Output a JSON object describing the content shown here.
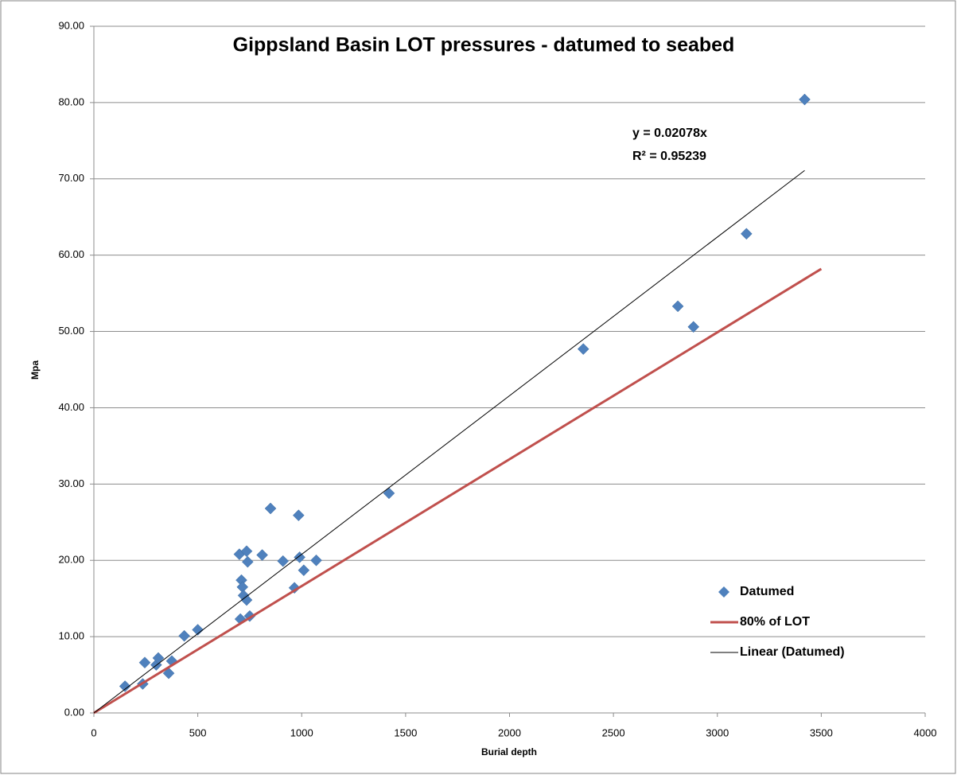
{
  "chart_data": {
    "type": "scatter",
    "title": "Gippsland Basin LOT pressures - datumed to seabed",
    "x_label": "Burial depth",
    "y_label": "Mpa",
    "annotations": [
      "y = 0.02078x",
      "R² = 0.95239"
    ],
    "xlim": [
      0,
      4000
    ],
    "xticks": [
      0,
      500,
      1000,
      1500,
      2000,
      2500,
      3000,
      3500,
      4000
    ],
    "ylim": [
      0,
      90
    ],
    "yticks": [
      {
        "value": 0,
        "label": "0.00"
      },
      {
        "value": 10,
        "label": "10.00"
      },
      {
        "value": 20,
        "label": "20.00"
      },
      {
        "value": 30,
        "label": "30.00"
      },
      {
        "value": 40,
        "label": "40.00"
      },
      {
        "value": 50,
        "label": "50.00"
      },
      {
        "value": 60,
        "label": "60.00"
      },
      {
        "value": 70,
        "label": "70.00"
      },
      {
        "value": 80,
        "label": "80.00"
      },
      {
        "value": 90,
        "label": "90.00"
      }
    ],
    "grid": true,
    "legend": "lower right",
    "series": [
      {
        "name": "Datumed",
        "color": "#4f81bd",
        "style": "markers",
        "x": [
          150,
          235,
          245,
          300,
          310,
          360,
          375,
          435,
          500,
          700,
          710,
          715,
          720,
          735,
          705,
          735,
          740,
          750,
          810,
          850,
          910,
          965,
          985,
          990,
          1010,
          1070,
          1420,
          2355,
          2810,
          2885,
          3140,
          3420
        ],
        "values": [
          3.5,
          3.8,
          6.6,
          6.3,
          7.2,
          5.2,
          6.8,
          10.1,
          10.9,
          20.8,
          17.4,
          16.5,
          15.4,
          14.8,
          12.3,
          21.2,
          19.8,
          12.7,
          20.7,
          26.8,
          19.9,
          16.4,
          25.9,
          20.4,
          18.7,
          20.0,
          28.8,
          47.7,
          53.3,
          50.6,
          62.8,
          80.4
        ]
      },
      {
        "name": "80% of LOT",
        "color": "#c0504d",
        "style": "line",
        "width": 3,
        "x": [
          0,
          3500
        ],
        "values": [
          0,
          58.2
        ]
      },
      {
        "name": "Linear (Datumed)",
        "color": "#000000",
        "style": "line",
        "width": 1,
        "x": [
          0,
          3420
        ],
        "values": [
          0,
          71.1
        ]
      }
    ]
  }
}
